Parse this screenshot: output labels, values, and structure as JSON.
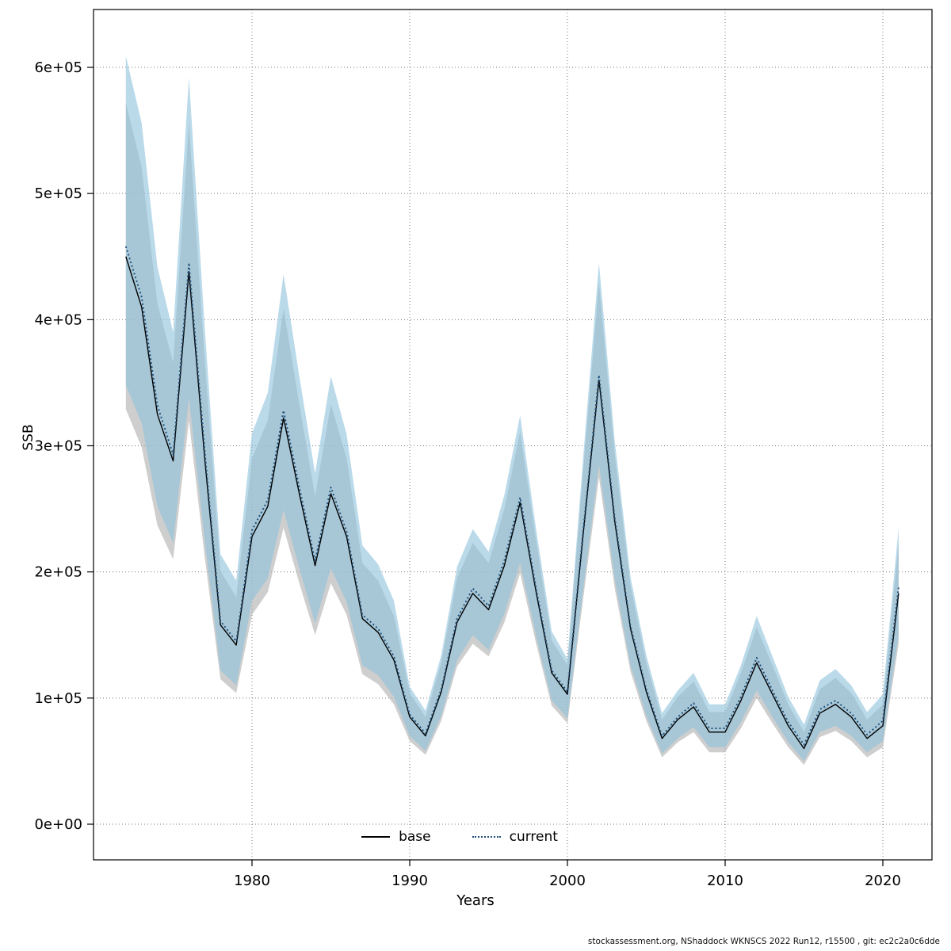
{
  "chart_data": {
    "type": "line",
    "title": "",
    "xlabel": "Years",
    "ylabel": "SSB",
    "grid": "dotted",
    "grid_color": "#777777",
    "legend_position": "bottom-center-inside",
    "xlim": [
      1969.9,
      2023.1
    ],
    "ylim": [
      -28000,
      646000
    ],
    "xticks": [
      1980,
      1990,
      2000,
      2010,
      2020
    ],
    "yticks": [
      0,
      100000,
      200000,
      300000,
      400000,
      500000,
      600000
    ],
    "ytick_labels": [
      "0e+00",
      "1e+05",
      "2e+05",
      "3e+05",
      "4e+05",
      "5e+05",
      "6e+05"
    ],
    "x": [
      1972,
      1973,
      1974,
      1975,
      1976,
      1977,
      1978,
      1979,
      1980,
      1981,
      1982,
      1983,
      1984,
      1985,
      1986,
      1987,
      1988,
      1989,
      1990,
      1991,
      1992,
      1993,
      1994,
      1995,
      1996,
      1997,
      1998,
      1999,
      2000,
      2001,
      2002,
      2003,
      2004,
      2005,
      2006,
      2007,
      2008,
      2009,
      2010,
      2011,
      2012,
      2013,
      2014,
      2015,
      2016,
      2017,
      2018,
      2019,
      2020,
      2021
    ],
    "series": [
      {
        "name": "base",
        "line_color": "#000000",
        "line_style": "solid",
        "band_color": "#b0b0b0",
        "values": [
          450000,
          410000,
          325000,
          288000,
          438000,
          290000,
          158000,
          142000,
          228000,
          252000,
          322000,
          262000,
          205000,
          262000,
          228000,
          163000,
          152000,
          130000,
          85000,
          70000,
          105000,
          160000,
          183000,
          170000,
          205000,
          255000,
          185000,
          120000,
          103000,
          230000,
          352000,
          240000,
          155000,
          105000,
          68000,
          83000,
          93000,
          73000,
          73000,
          98000,
          128000,
          103000,
          78000,
          60000,
          88000,
          95000,
          85000,
          68000,
          78000,
          183000
        ],
        "lower": [
          329000,
          299000,
          237000,
          210000,
          320000,
          212000,
          115000,
          104000,
          166000,
          184000,
          235000,
          191000,
          150000,
          191000,
          166000,
          119000,
          111000,
          95000,
          66000,
          55000,
          82000,
          125000,
          143000,
          133000,
          160000,
          199000,
          144000,
          94000,
          80000,
          179000,
          275000,
          187000,
          121000,
          82000,
          53000,
          65000,
          73000,
          57000,
          57000,
          76000,
          100000,
          80000,
          61000,
          47000,
          69000,
          74000,
          66000,
          53000,
          61000,
          143000
        ],
        "upper": [
          572000,
          521000,
          413000,
          366000,
          556000,
          368000,
          201000,
          180000,
          290000,
          320000,
          409000,
          333000,
          260000,
          333000,
          290000,
          207000,
          193000,
          165000,
          104000,
          85000,
          128000,
          195000,
          223000,
          207000,
          250000,
          311000,
          226000,
          146000,
          126000,
          281000,
          429000,
          293000,
          189000,
          128000,
          83000,
          101000,
          113000,
          89000,
          89000,
          120000,
          156000,
          126000,
          95000,
          73000,
          107000,
          116000,
          104000,
          83000,
          95000,
          223000
        ]
      },
      {
        "name": "current",
        "line_color": "#1f4e79",
        "line_style": "dotted",
        "band_color": "#8fc3dd",
        "values": [
          458000,
          418000,
          332000,
          293000,
          445000,
          296000,
          161000,
          145000,
          233000,
          257000,
          328000,
          267000,
          209000,
          267000,
          232000,
          166000,
          155000,
          133000,
          87000,
          72000,
          107000,
          163000,
          187000,
          173000,
          209000,
          259000,
          188000,
          122000,
          105000,
          233000,
          356000,
          243000,
          157000,
          107000,
          70000,
          85000,
          96000,
          76000,
          76000,
          101000,
          132000,
          106000,
          81000,
          63000,
          91000,
          98000,
          88000,
          71000,
          82000,
          188000
        ],
        "lower": [
          348000,
          318000,
          252000,
          223000,
          338000,
          225000,
          122000,
          110000,
          177000,
          195000,
          249000,
          203000,
          159000,
          203000,
          176000,
          126000,
          118000,
          101000,
          70000,
          58000,
          86000,
          130000,
          150000,
          138000,
          167000,
          207000,
          150000,
          98000,
          84000,
          186000,
          285000,
          194000,
          126000,
          86000,
          56000,
          68000,
          77000,
          61000,
          61000,
          81000,
          106000,
          85000,
          65000,
          50000,
          73000,
          78000,
          70000,
          57000,
          66000,
          150000
        ],
        "upper": [
          609000,
          556000,
          442000,
          390000,
          592000,
          394000,
          214000,
          193000,
          310000,
          342000,
          436000,
          355000,
          278000,
          355000,
          309000,
          221000,
          206000,
          177000,
          109000,
          90000,
          134000,
          204000,
          234000,
          216000,
          261000,
          324000,
          235000,
          153000,
          131000,
          291000,
          445000,
          304000,
          196000,
          134000,
          88000,
          106000,
          120000,
          95000,
          95000,
          126000,
          165000,
          133000,
          101000,
          79000,
          114000,
          123000,
          110000,
          89000,
          103000,
          235000
        ]
      }
    ],
    "footer": "stockassessment.org, NShaddock WKNSCS 2022 Run12, r15500 , git: ec2c2a0c6dde"
  }
}
